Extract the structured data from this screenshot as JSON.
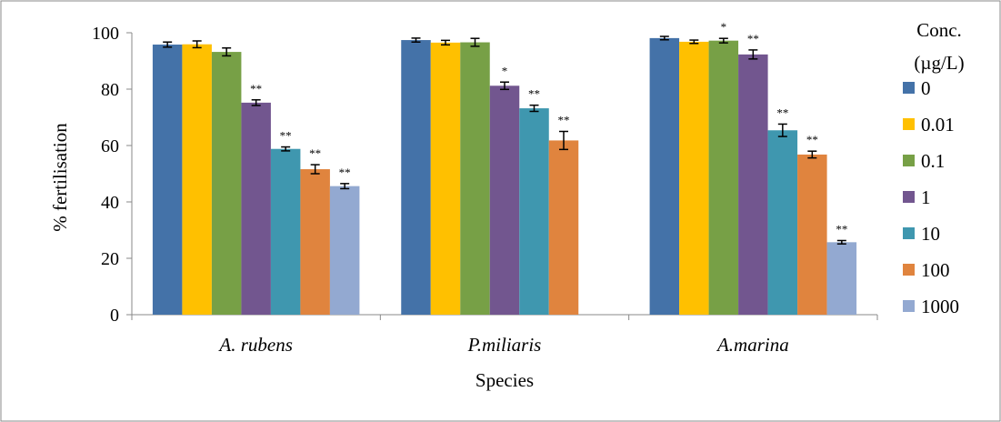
{
  "chart_data": {
    "type": "bar",
    "categories": [
      "A. rubens",
      "P.miliaris",
      "A.marina"
    ],
    "xlabel": "Species",
    "ylabel": "% fertilisation",
    "ylim": [
      0,
      100
    ],
    "yticks": [
      "0",
      "20",
      "40",
      "60",
      "80",
      "100"
    ],
    "legend_title": [
      "Conc.",
      "(µg/L)"
    ],
    "legend_position": "right",
    "grid": false,
    "series": [
      {
        "name": "0",
        "color": "#4472A8",
        "values": [
          95.8,
          97.4,
          98.1
        ],
        "errors": [
          0.9,
          0.7,
          0.6
        ],
        "sig": [
          "",
          "",
          ""
        ]
      },
      {
        "name": "0.01",
        "color": "#FFC000",
        "values": [
          95.9,
          96.5,
          96.8
        ],
        "errors": [
          1.2,
          0.8,
          0.6
        ],
        "sig": [
          "",
          "",
          ""
        ]
      },
      {
        "name": "0.1",
        "color": "#77A046",
        "values": [
          93.2,
          96.6,
          97.2
        ],
        "errors": [
          1.4,
          1.4,
          0.8
        ],
        "sig": [
          "",
          "",
          "*"
        ]
      },
      {
        "name": "1",
        "color": "#72568F",
        "values": [
          75.2,
          81.2,
          92.3
        ],
        "errors": [
          1.0,
          1.3,
          1.6
        ],
        "sig": [
          "**",
          "*",
          "**"
        ]
      },
      {
        "name": "10",
        "color": "#3F97AF",
        "values": [
          58.8,
          73.2,
          65.4
        ],
        "errors": [
          0.7,
          1.1,
          2.2
        ],
        "sig": [
          "**",
          "**",
          "**"
        ]
      },
      {
        "name": "100",
        "color": "#E0843E",
        "values": [
          51.6,
          61.8,
          56.8
        ],
        "errors": [
          1.6,
          3.2,
          1.2
        ],
        "sig": [
          "**",
          "**",
          "**"
        ]
      },
      {
        "name": "1000",
        "color": "#93A9D1",
        "values": [
          45.6,
          0,
          25.7
        ],
        "errors": [
          0.9,
          0,
          0.6
        ],
        "sig": [
          "**",
          "",
          "**"
        ]
      }
    ]
  }
}
